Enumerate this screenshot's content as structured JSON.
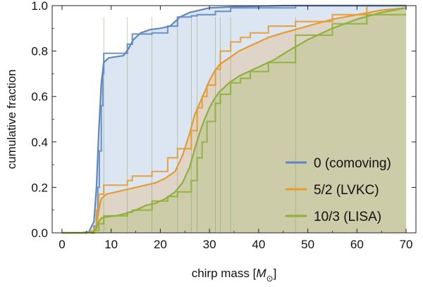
{
  "chart_data": {
    "type": "line",
    "xlabel": "chirp mass [",
    "xlabel_symbol": "M",
    "xlabel_subscript": "⊙",
    "xlabel_suffix": "]",
    "ylabel": "cumulative fraction",
    "xlim": [
      -2,
      72
    ],
    "ylim": [
      0,
      1.0
    ],
    "x_ticks": [
      0,
      10,
      20,
      30,
      40,
      50,
      60,
      70
    ],
    "y_ticks": [
      0.0,
      0.2,
      0.4,
      0.6,
      0.8,
      1.0
    ],
    "x_tick_labels": [
      "0",
      "10",
      "20",
      "30",
      "40",
      "50",
      "60",
      "70"
    ],
    "y_tick_labels": [
      "0.0",
      "0.2",
      "0.4",
      "0.6",
      "0.8",
      "1.0"
    ],
    "legend_position": "bottom-right",
    "event_markers_x": [
      8.5,
      13.3,
      18.3,
      23.5,
      26.3,
      27.5,
      31.2,
      32.2,
      34.3,
      47.5
    ],
    "series": [
      {
        "name": "0 (comoving)",
        "color": "#5f88c3",
        "fill": "#5f88c3",
        "curve": [
          [
            0,
            0
          ],
          [
            4,
            0
          ],
          [
            5.5,
            0.005
          ],
          [
            6.5,
            0.05
          ],
          [
            7,
            0.2
          ],
          [
            7.5,
            0.45
          ],
          [
            8,
            0.66
          ],
          [
            8.5,
            0.75
          ],
          [
            9.5,
            0.77
          ],
          [
            11,
            0.775
          ],
          [
            12.5,
            0.78
          ],
          [
            13.5,
            0.81
          ],
          [
            14.5,
            0.85
          ],
          [
            16,
            0.88
          ],
          [
            18,
            0.895
          ],
          [
            20,
            0.9
          ],
          [
            22,
            0.91
          ],
          [
            24,
            0.95
          ],
          [
            26,
            0.97
          ],
          [
            28,
            0.98
          ],
          [
            30,
            0.99
          ],
          [
            35,
            0.995
          ],
          [
            45,
            1.0
          ],
          [
            70,
            1.0
          ]
        ],
        "steps": [
          [
            5.8,
            0.0
          ],
          [
            6.5,
            0.03
          ],
          [
            7.0,
            0.08
          ],
          [
            7.3,
            0.2
          ],
          [
            7.6,
            0.36
          ],
          [
            8.0,
            0.56
          ],
          [
            8.3,
            0.7
          ],
          [
            8.5,
            0.79
          ],
          [
            13.3,
            0.83
          ],
          [
            14.3,
            0.875
          ],
          [
            18.3,
            0.88
          ],
          [
            21.5,
            0.91
          ],
          [
            23.5,
            0.95
          ],
          [
            26.3,
            0.955
          ],
          [
            27.5,
            0.96
          ],
          [
            31.2,
            0.975
          ],
          [
            34.3,
            0.99
          ],
          [
            47.5,
            1.0
          ],
          [
            70,
            1.0
          ]
        ]
      },
      {
        "name": "5/2 (LVKC)",
        "color": "#e69c2e",
        "fill": "#e69c2e",
        "curve": [
          [
            0,
            0
          ],
          [
            5,
            0
          ],
          [
            6.5,
            0.01
          ],
          [
            7,
            0.03
          ],
          [
            7.5,
            0.1
          ],
          [
            8,
            0.15
          ],
          [
            9,
            0.17
          ],
          [
            11,
            0.18
          ],
          [
            13,
            0.19
          ],
          [
            15,
            0.2
          ],
          [
            17,
            0.21
          ],
          [
            19,
            0.22
          ],
          [
            21,
            0.24
          ],
          [
            23,
            0.27
          ],
          [
            24.5,
            0.34
          ],
          [
            26,
            0.44
          ],
          [
            27,
            0.52
          ],
          [
            28,
            0.57
          ],
          [
            29,
            0.62
          ],
          [
            30,
            0.67
          ],
          [
            31,
            0.71
          ],
          [
            32,
            0.74
          ],
          [
            34,
            0.77
          ],
          [
            36,
            0.8
          ],
          [
            38,
            0.82
          ],
          [
            40,
            0.84
          ],
          [
            42,
            0.86
          ],
          [
            45,
            0.88
          ],
          [
            50,
            0.91
          ],
          [
            55,
            0.94
          ],
          [
            60,
            0.96
          ],
          [
            65,
            0.98
          ],
          [
            70,
            0.99
          ]
        ],
        "steps": [
          [
            5.8,
            0.0
          ],
          [
            6.5,
            0.02
          ],
          [
            7.0,
            0.1
          ],
          [
            7.5,
            0.17
          ],
          [
            8.5,
            0.21
          ],
          [
            13.3,
            0.23
          ],
          [
            14.3,
            0.25
          ],
          [
            18.3,
            0.27
          ],
          [
            21.5,
            0.33
          ],
          [
            23.5,
            0.37
          ],
          [
            26.3,
            0.45
          ],
          [
            27.5,
            0.55
          ],
          [
            28.5,
            0.6
          ],
          [
            29.5,
            0.65
          ],
          [
            31.2,
            0.72
          ],
          [
            32.2,
            0.8
          ],
          [
            34.3,
            0.84
          ],
          [
            36.3,
            0.86
          ],
          [
            38.3,
            0.88
          ],
          [
            42,
            0.91
          ],
          [
            47.5,
            0.93
          ],
          [
            55,
            0.96
          ],
          [
            62,
            1.0
          ],
          [
            70,
            1.0
          ]
        ]
      },
      {
        "name": "10/3 (LISA)",
        "color": "#8fb03a",
        "fill": "#8fb03a",
        "curve": [
          [
            0,
            0
          ],
          [
            5,
            0
          ],
          [
            6.5,
            0.005
          ],
          [
            7,
            0.02
          ],
          [
            7.5,
            0.05
          ],
          [
            8,
            0.065
          ],
          [
            9,
            0.07
          ],
          [
            11,
            0.075
          ],
          [
            13,
            0.085
          ],
          [
            15,
            0.1
          ],
          [
            17,
            0.12
          ],
          [
            19,
            0.13
          ],
          [
            21,
            0.15
          ],
          [
            23,
            0.18
          ],
          [
            24.5,
            0.22
          ],
          [
            26,
            0.29
          ],
          [
            27,
            0.37
          ],
          [
            28,
            0.44
          ],
          [
            29,
            0.5
          ],
          [
            30,
            0.55
          ],
          [
            31,
            0.59
          ],
          [
            32,
            0.62
          ],
          [
            34,
            0.66
          ],
          [
            36,
            0.69
          ],
          [
            38,
            0.71
          ],
          [
            40,
            0.73
          ],
          [
            43,
            0.76
          ],
          [
            46,
            0.8
          ],
          [
            50,
            0.85
          ],
          [
            55,
            0.9
          ],
          [
            60,
            0.94
          ],
          [
            65,
            0.97
          ],
          [
            70,
            0.99
          ]
        ],
        "steps": [
          [
            5.8,
            0.0
          ],
          [
            6.5,
            0.01
          ],
          [
            7.5,
            0.04
          ],
          [
            8.5,
            0.075
          ],
          [
            13.3,
            0.09
          ],
          [
            14.3,
            0.1
          ],
          [
            18.3,
            0.14
          ],
          [
            21.5,
            0.16
          ],
          [
            23.5,
            0.18
          ],
          [
            26.3,
            0.23
          ],
          [
            27.5,
            0.33
          ],
          [
            28.5,
            0.4
          ],
          [
            29.5,
            0.49
          ],
          [
            31.2,
            0.57
          ],
          [
            32.2,
            0.61
          ],
          [
            34.3,
            0.66
          ],
          [
            36.3,
            0.68
          ],
          [
            38.3,
            0.71
          ],
          [
            42,
            0.75
          ],
          [
            47.5,
            0.87
          ],
          [
            55,
            0.92
          ],
          [
            62,
            0.96
          ],
          [
            70,
            0.96
          ]
        ]
      }
    ]
  }
}
